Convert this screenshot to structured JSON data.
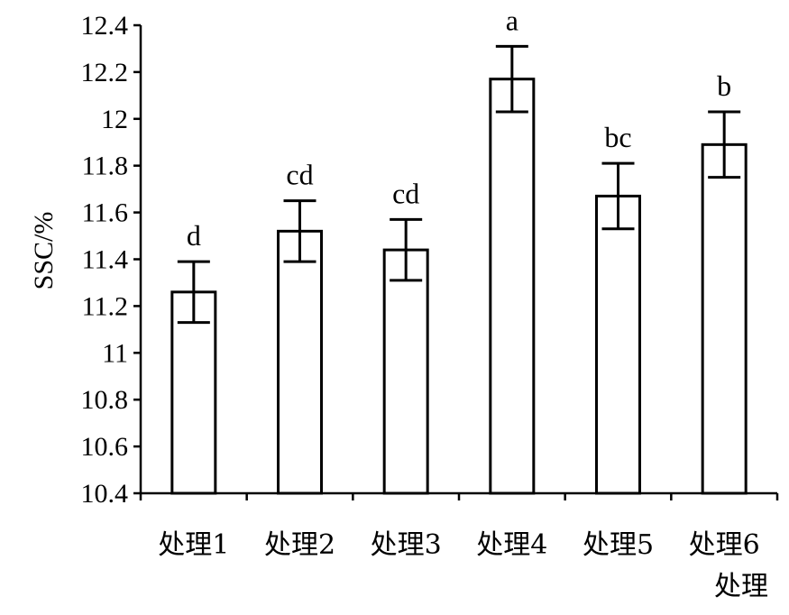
{
  "chart_data": {
    "type": "bar",
    "categories": [
      "处理1",
      "处理2",
      "处理3",
      "处理4",
      "处理5",
      "处理6"
    ],
    "values": [
      11.26,
      11.52,
      11.44,
      12.17,
      11.67,
      11.89
    ],
    "errors": [
      0.13,
      0.13,
      0.13,
      0.14,
      0.14,
      0.14
    ],
    "significance": [
      "d",
      "cd",
      "cd",
      "a",
      "bc",
      "b"
    ],
    "ylabel": "SSC/%",
    "xlabel": "处理",
    "ylim": [
      10.4,
      12.4
    ],
    "yticks": [
      "10.4",
      "10.6",
      "10.8",
      "11",
      "11.2",
      "11.4",
      "11.6",
      "11.8",
      "12",
      "12.2",
      "12.4"
    ],
    "grid": false,
    "legend": false
  }
}
